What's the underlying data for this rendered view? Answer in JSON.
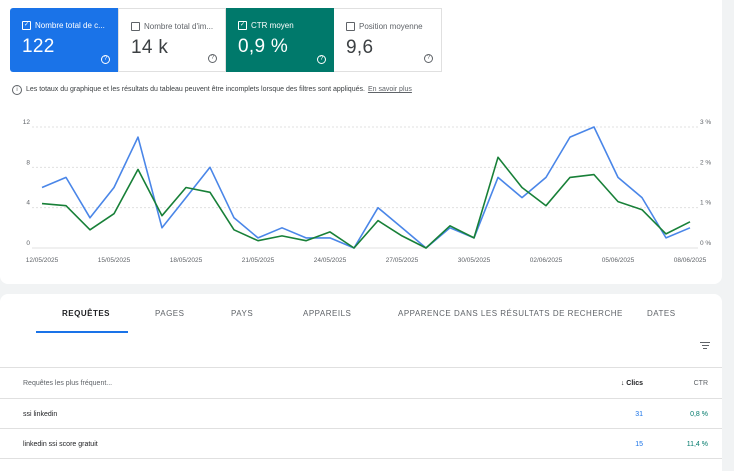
{
  "metrics": {
    "clicks": {
      "label": "Nombre total de c...",
      "value": "122",
      "checked": "✓",
      "help": "?"
    },
    "impressions": {
      "label": "Nombre total d'im...",
      "value": "14 k",
      "help": "?"
    },
    "ctr": {
      "label": "CTR moyen",
      "value": "0,9 %",
      "checked": "✓",
      "help": "?"
    },
    "position": {
      "label": "Position moyenne",
      "value": "9,6",
      "help": "?"
    }
  },
  "info": {
    "icon_text": "i",
    "text": "Les totaux du graphique et les résultats du tableau peuvent être incomplets lorsque des filtres sont appliqués.",
    "link": "En savoir plus"
  },
  "chart_data": {
    "type": "line",
    "x": [
      "12/05/2025",
      "13/05/2025",
      "14/05/2025",
      "15/05/2025",
      "16/05/2025",
      "17/05/2025",
      "18/05/2025",
      "19/05/2025",
      "20/05/2025",
      "21/05/2025",
      "22/05/2025",
      "23/05/2025",
      "24/05/2025",
      "25/05/2025",
      "26/05/2025",
      "27/05/2025",
      "28/05/2025",
      "29/05/2025",
      "30/05/2025",
      "31/05/2025",
      "01/06/2025",
      "02/06/2025",
      "03/06/2025",
      "04/06/2025",
      "05/06/2025",
      "06/06/2025",
      "07/06/2025",
      "08/06/2025"
    ],
    "tick_labels": [
      "12/05/2025",
      "15/05/2025",
      "18/05/2025",
      "21/05/2025",
      "24/05/2025",
      "27/05/2025",
      "30/05/2025",
      "02/06/2025",
      "05/06/2025",
      "08/06/2025"
    ],
    "series": [
      {
        "axis": "left",
        "color": "#4a86e8",
        "values": [
          6,
          7,
          3,
          6,
          11,
          2,
          5,
          8,
          3,
          1,
          2,
          1,
          1,
          0,
          4,
          2,
          0,
          2,
          1,
          7,
          5,
          7,
          11,
          12,
          7,
          5,
          1,
          2
        ]
      },
      {
        "axis": "right",
        "color": "#188038",
        "values": [
          1.1,
          1.05,
          0.45,
          0.85,
          1.95,
          0.8,
          1.5,
          1.38,
          0.45,
          0.18,
          0.3,
          0.18,
          0.4,
          0,
          0.68,
          0.3,
          0,
          0.55,
          0.25,
          2.25,
          1.5,
          1.05,
          1.75,
          1.82,
          1.15,
          0.95,
          0.35,
          0.65
        ]
      }
    ],
    "ylim_left": [
      0,
      12
    ],
    "yticks_left": [
      "0",
      "4",
      "8",
      "12"
    ],
    "ylim_right": [
      0,
      3
    ],
    "yticks_right": [
      "0 %",
      "1 %",
      "2 %",
      "3 %"
    ],
    "grid": true
  },
  "tabs": [
    "REQUÊTES",
    "PAGES",
    "PAYS",
    "APPAREILS",
    "APPARENCE DANS LES RÉSULTATS DE RECHERCHE",
    "DATES"
  ],
  "table": {
    "headers": {
      "query": "Requêtes les plus fréquent...",
      "clicks": "Clics",
      "sort_icon": "↓",
      "ctr": "CTR"
    },
    "rows": [
      {
        "query": "ssi linkedin",
        "clicks": "31",
        "ctr": "0,8 %"
      },
      {
        "query": "linkedin ssi score gratuit",
        "clicks": "15",
        "ctr": "11,4 %"
      }
    ]
  }
}
